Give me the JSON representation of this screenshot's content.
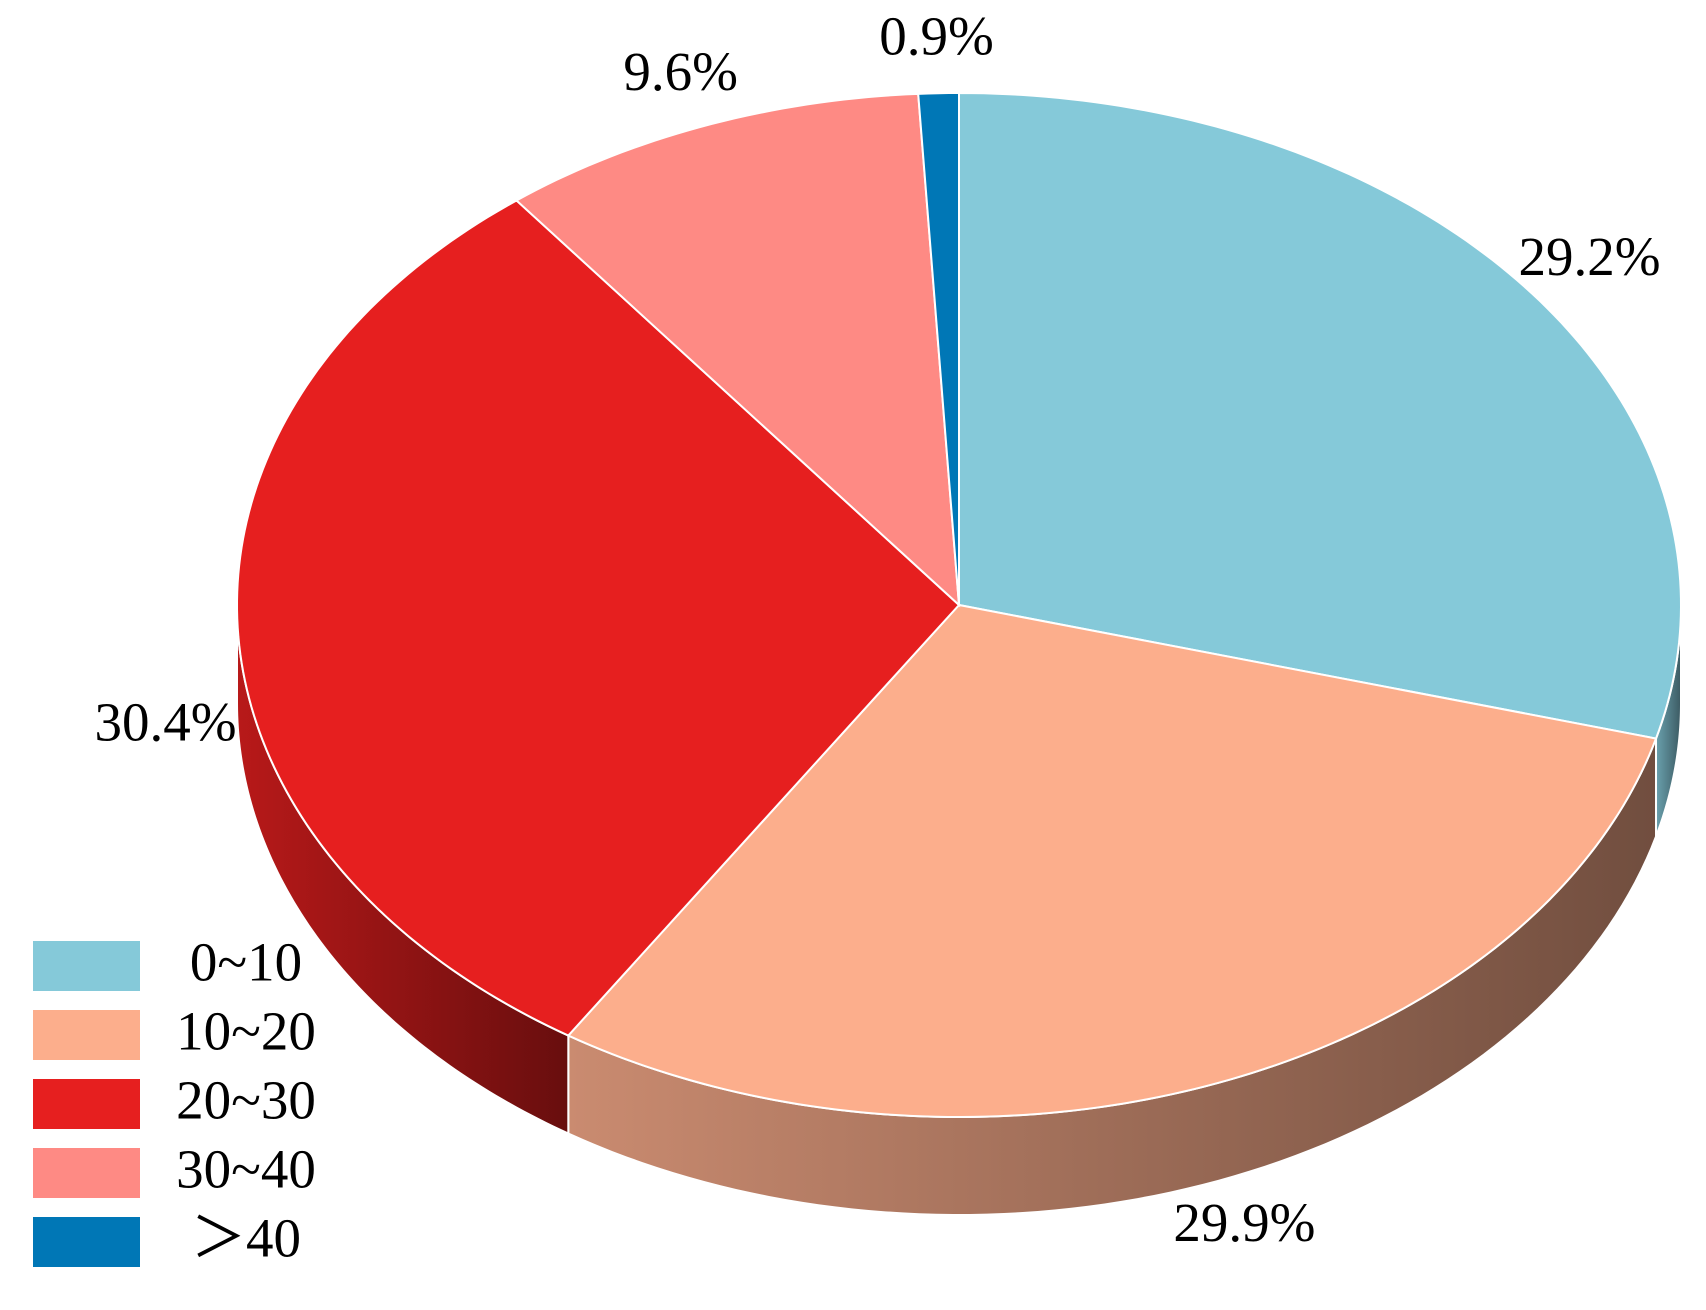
{
  "chart_data": {
    "type": "pie3d",
    "categories": [
      "0~10",
      "10~20",
      "20~30",
      "30~40",
      "＞40"
    ],
    "values": [
      29.2,
      29.9,
      30.4,
      9.6,
      0.9
    ],
    "value_labels": [
      "29.2%",
      "29.9%",
      "30.4%",
      "9.6%",
      "0.9%"
    ],
    "colors": [
      "#85c9d9",
      "#fcae8c",
      "#e61f1f",
      "#fe8a84",
      "#0077b6"
    ],
    "legend": "bottom-left"
  }
}
